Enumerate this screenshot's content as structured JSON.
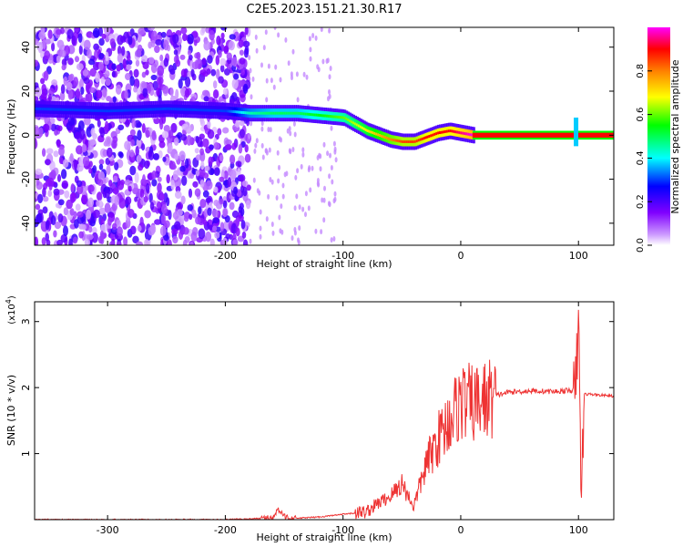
{
  "title": "C2E5.2023.151.21.30.R17",
  "top_panel": {
    "xlabel": "Height of straight line (km)",
    "ylabel": "Frequency (Hz)",
    "xlim": [
      -362,
      130
    ],
    "ylim": [
      -50,
      49
    ],
    "xticks": [
      -300,
      -200,
      -100,
      0,
      100
    ],
    "yticks": [
      -40,
      -20,
      0,
      20,
      40
    ],
    "colorbar": {
      "label": "Normalized spectral amplitude",
      "range": [
        0,
        1
      ],
      "ticks": [
        "0.0",
        "0.2",
        "0.4",
        "0.6",
        "0.8"
      ],
      "colors": [
        "#ffffff",
        "#cc99ff",
        "#8000ff",
        "#0000ff",
        "#00ffff",
        "#00ff00",
        "#ffff00",
        "#ff8000",
        "#ff0000",
        "#ff00ff"
      ]
    }
  },
  "bottom_panel": {
    "xlabel": "Height of straight line (km)",
    "ylabel": "SNR (10 * v/v)",
    "scale_label": "(x10",
    "scale_exp": "4",
    "scale_close": ")",
    "xlim": [
      -362,
      130
    ],
    "ylim": [
      0,
      3.3
    ],
    "xticks": [
      -300,
      -200,
      -100,
      0,
      100
    ],
    "yticks": [
      1,
      2,
      3
    ],
    "line_color": "#ee3333"
  },
  "chart_data": [
    {
      "type": "heatmap",
      "title": "C2E5.2023.151.21.30.R17",
      "xlabel": "Height of straight line (km)",
      "ylabel": "Frequency (Hz)",
      "xlim": [
        -362,
        130
      ],
      "ylim": [
        -50,
        49
      ],
      "colorbar_label": "Normalized spectral amplitude",
      "noise_region_x": [
        -362,
        -180
      ],
      "ridge": {
        "x": [
          -362,
          -300,
          -250,
          -200,
          -180,
          -160,
          -140,
          -120,
          -100,
          -90,
          -80,
          -70,
          -60,
          -50,
          -40,
          -30,
          -20,
          -10,
          0,
          10,
          50,
          100,
          130
        ],
        "y": [
          12,
          11,
          12,
          11,
          10,
          10,
          10,
          9,
          8,
          5,
          2,
          0,
          -2,
          -3,
          -3,
          -1,
          1,
          2,
          1,
          0,
          0,
          0,
          0
        ],
        "amplitude": [
          0.3,
          0.3,
          0.3,
          0.3,
          0.45,
          0.5,
          0.5,
          0.55,
          0.6,
          0.65,
          0.7,
          0.75,
          0.8,
          0.85,
          0.85,
          0.9,
          0.9,
          0.9,
          0.95,
          1.0,
          1.0,
          1.0,
          1.0
        ]
      }
    },
    {
      "type": "line",
      "xlabel": "Height of straight line (km)",
      "ylabel": "SNR (10 * v/v)",
      "xlim": [
        -362,
        130
      ],
      "ylim": [
        0,
        3.3
      ],
      "unit_multiplier": "x10^4",
      "series": [
        {
          "x": [
            -362,
            -200,
            -180,
            -160,
            -155,
            -150,
            -140,
            -120,
            -100,
            -80,
            -70,
            -60,
            -50,
            -40,
            -30,
            -20,
            -10,
            0,
            10,
            20,
            30,
            40,
            60,
            80,
            95,
            98,
            100,
            102,
            105,
            110,
            130
          ],
          "values": [
            0.0,
            0.0,
            0.01,
            0.03,
            0.15,
            0.05,
            0.02,
            0.04,
            0.08,
            0.12,
            0.25,
            0.35,
            0.55,
            0.2,
            0.8,
            1.2,
            1.5,
            1.8,
            1.75,
            1.8,
            1.88,
            1.93,
            1.95,
            1.94,
            1.96,
            1.95,
            3.3,
            0.3,
            1.9,
            1.9,
            1.87
          ]
        }
      ]
    }
  ]
}
